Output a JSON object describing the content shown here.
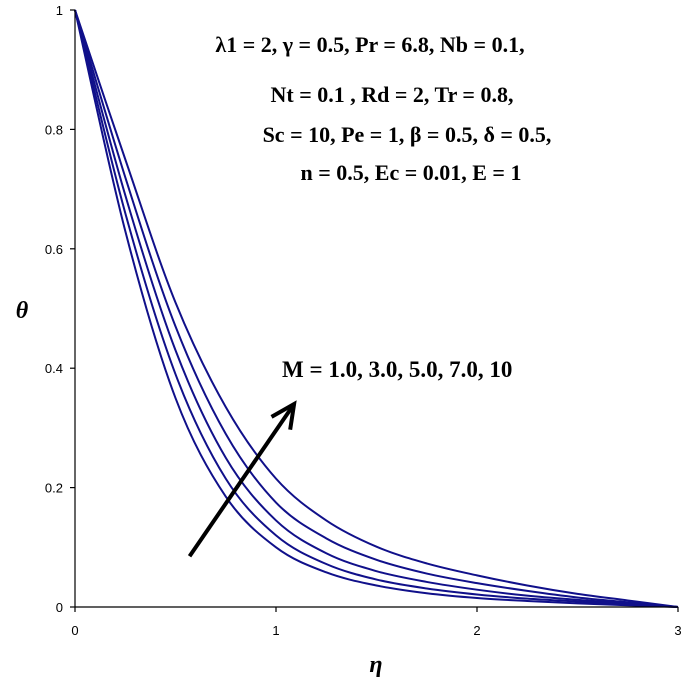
{
  "chart_data": {
    "type": "line",
    "xlabel": "η",
    "ylabel": "θ",
    "xlim": [
      0,
      3
    ],
    "ylim": [
      0,
      1
    ],
    "x_ticks": [
      "0",
      "1",
      "2",
      "3"
    ],
    "y_ticks": [
      "0",
      "0.2",
      "0.4",
      "0.6",
      "0.8",
      "1"
    ],
    "grid": false,
    "parameters": [
      "λ1 = 2,  γ = 0.5,  Pr = 6.8,  Nb = 0.1,",
      "Nt = 0.1 , Rd = 2, Tr = 0.8,",
      "Sc = 10,  Pe = 1,  β = 0.5, δ = 0.5,",
      "n = 0.5, Ec = 0.01,  E = 1"
    ],
    "annotation": "M = 1.0, 3.0, 5.0, 7.0, 10",
    "arrow": {
      "from": [
        0.57,
        0.085
      ],
      "to": [
        1.09,
        0.34
      ]
    },
    "x": [
      0,
      0.25,
      0.5,
      0.75,
      1.0,
      1.25,
      1.5,
      1.75,
      2.0,
      2.25,
      2.5,
      2.75,
      3.0
    ],
    "series": [
      {
        "values": [
          1.0,
          0.63,
          0.35,
          0.185,
          0.1,
          0.058,
          0.036,
          0.023,
          0.015,
          0.01,
          0.006,
          0.003,
          0.0
        ]
      },
      {
        "values": [
          1.0,
          0.66,
          0.39,
          0.215,
          0.12,
          0.072,
          0.046,
          0.031,
          0.021,
          0.014,
          0.009,
          0.004,
          0.0
        ]
      },
      {
        "values": [
          1.0,
          0.69,
          0.43,
          0.25,
          0.145,
          0.09,
          0.06,
          0.042,
          0.029,
          0.019,
          0.012,
          0.006,
          0.0
        ]
      },
      {
        "values": [
          1.0,
          0.72,
          0.47,
          0.29,
          0.175,
          0.115,
          0.079,
          0.056,
          0.04,
          0.027,
          0.016,
          0.008,
          0.0
        ]
      },
      {
        "values": [
          1.0,
          0.75,
          0.51,
          0.335,
          0.215,
          0.145,
          0.101,
          0.073,
          0.053,
          0.036,
          0.022,
          0.011,
          0.0
        ]
      }
    ],
    "colors": {
      "curve": "#10108a",
      "arrow": "#000000"
    }
  }
}
